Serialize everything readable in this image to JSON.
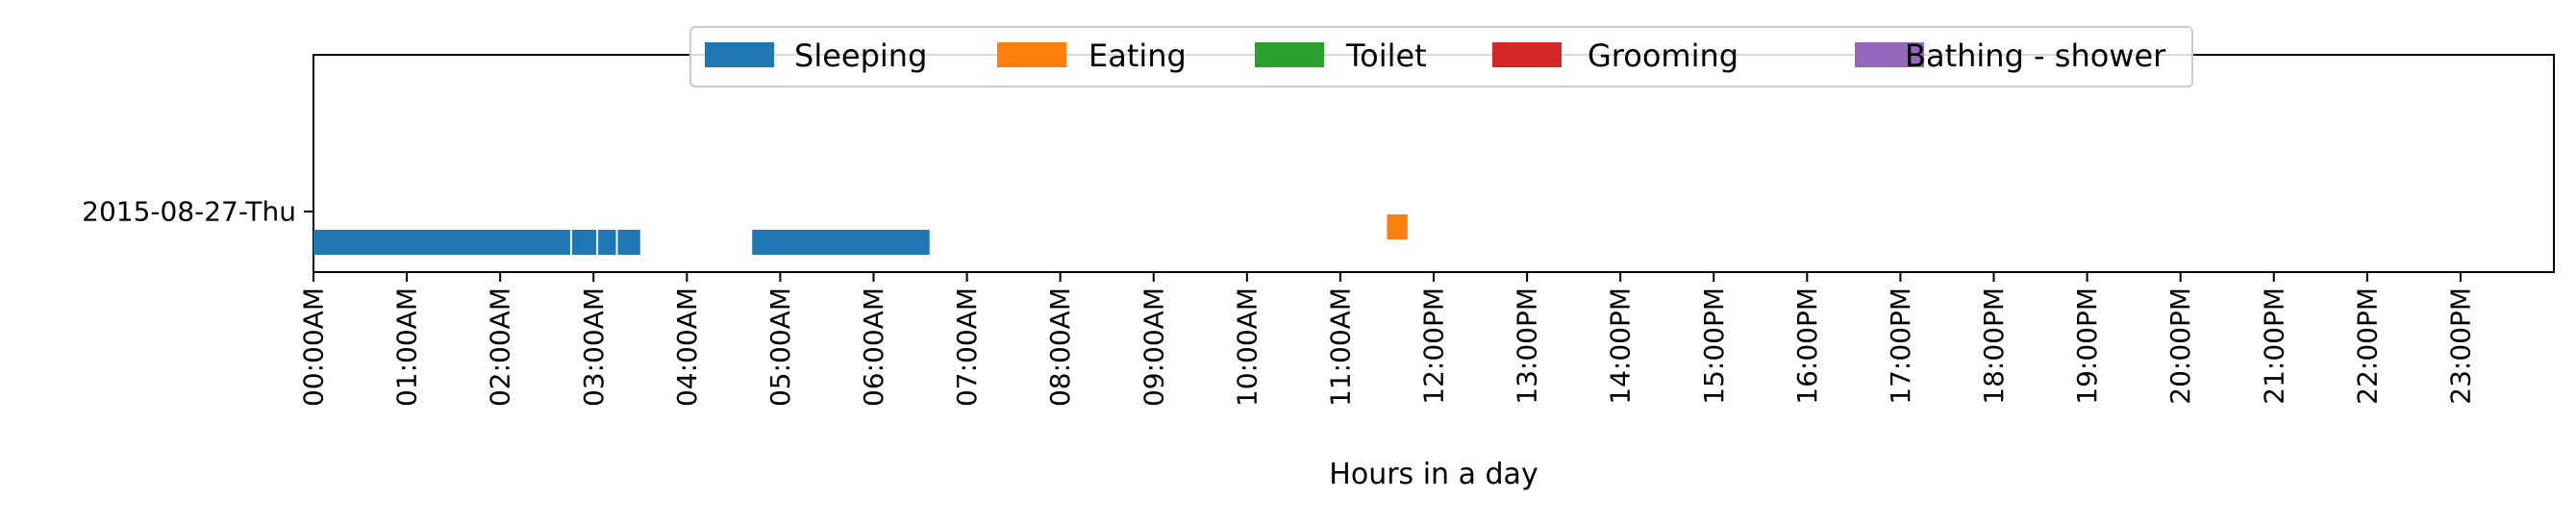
{
  "chart_data": {
    "type": "timeline",
    "title": "",
    "xlabel": "Hours in a day",
    "ylabel": "",
    "x_unit": "hours",
    "xlim": [
      0,
      24
    ],
    "xticks": [
      {
        "value": 0,
        "label": "00:00AM"
      },
      {
        "value": 1,
        "label": "01:00AM"
      },
      {
        "value": 2,
        "label": "02:00AM"
      },
      {
        "value": 3,
        "label": "03:00AM"
      },
      {
        "value": 4,
        "label": "04:00AM"
      },
      {
        "value": 5,
        "label": "05:00AM"
      },
      {
        "value": 6,
        "label": "06:00AM"
      },
      {
        "value": 7,
        "label": "07:00AM"
      },
      {
        "value": 8,
        "label": "08:00AM"
      },
      {
        "value": 9,
        "label": "09:00AM"
      },
      {
        "value": 10,
        "label": "10:00AM"
      },
      {
        "value": 11,
        "label": "11:00AM"
      },
      {
        "value": 12,
        "label": "12:00PM"
      },
      {
        "value": 13,
        "label": "13:00PM"
      },
      {
        "value": 14,
        "label": "14:00PM"
      },
      {
        "value": 15,
        "label": "15:00PM"
      },
      {
        "value": 16,
        "label": "16:00PM"
      },
      {
        "value": 17,
        "label": "17:00PM"
      },
      {
        "value": 18,
        "label": "18:00PM"
      },
      {
        "value": 19,
        "label": "19:00PM"
      },
      {
        "value": 20,
        "label": "20:00PM"
      },
      {
        "value": 21,
        "label": "21:00PM"
      },
      {
        "value": 22,
        "label": "22:00PM"
      },
      {
        "value": 23,
        "label": "23:00PM"
      }
    ],
    "rows": [
      "2015-08-27-Thu"
    ],
    "legend_position": "top-center",
    "grid": false,
    "series": [
      {
        "name": "Sleeping",
        "color": "#1f77b4",
        "lane": 0
      },
      {
        "name": "Eating",
        "color": "#ff7f0e",
        "lane": 1
      },
      {
        "name": "Toilet",
        "color": "#2ca02c",
        "lane": 2
      },
      {
        "name": "Grooming",
        "color": "#d62728",
        "lane": 3
      },
      {
        "name": "Bathing - shower",
        "color": "#9467bd",
        "lane": 4
      }
    ],
    "intervals": [
      {
        "series": "Sleeping",
        "row": "2015-08-27-Thu",
        "start": 0.0,
        "end": 2.75
      },
      {
        "series": "Sleeping",
        "row": "2015-08-27-Thu",
        "start": 2.77,
        "end": 3.03
      },
      {
        "series": "Sleeping",
        "row": "2015-08-27-Thu",
        "start": 3.05,
        "end": 3.24
      },
      {
        "series": "Sleeping",
        "row": "2015-08-27-Thu",
        "start": 3.26,
        "end": 3.5
      },
      {
        "series": "Sleeping",
        "row": "2015-08-27-Thu",
        "start": 4.7,
        "end": 6.6
      },
      {
        "series": "Eating",
        "row": "2015-08-27-Thu",
        "start": 11.5,
        "end": 11.72
      }
    ]
  }
}
